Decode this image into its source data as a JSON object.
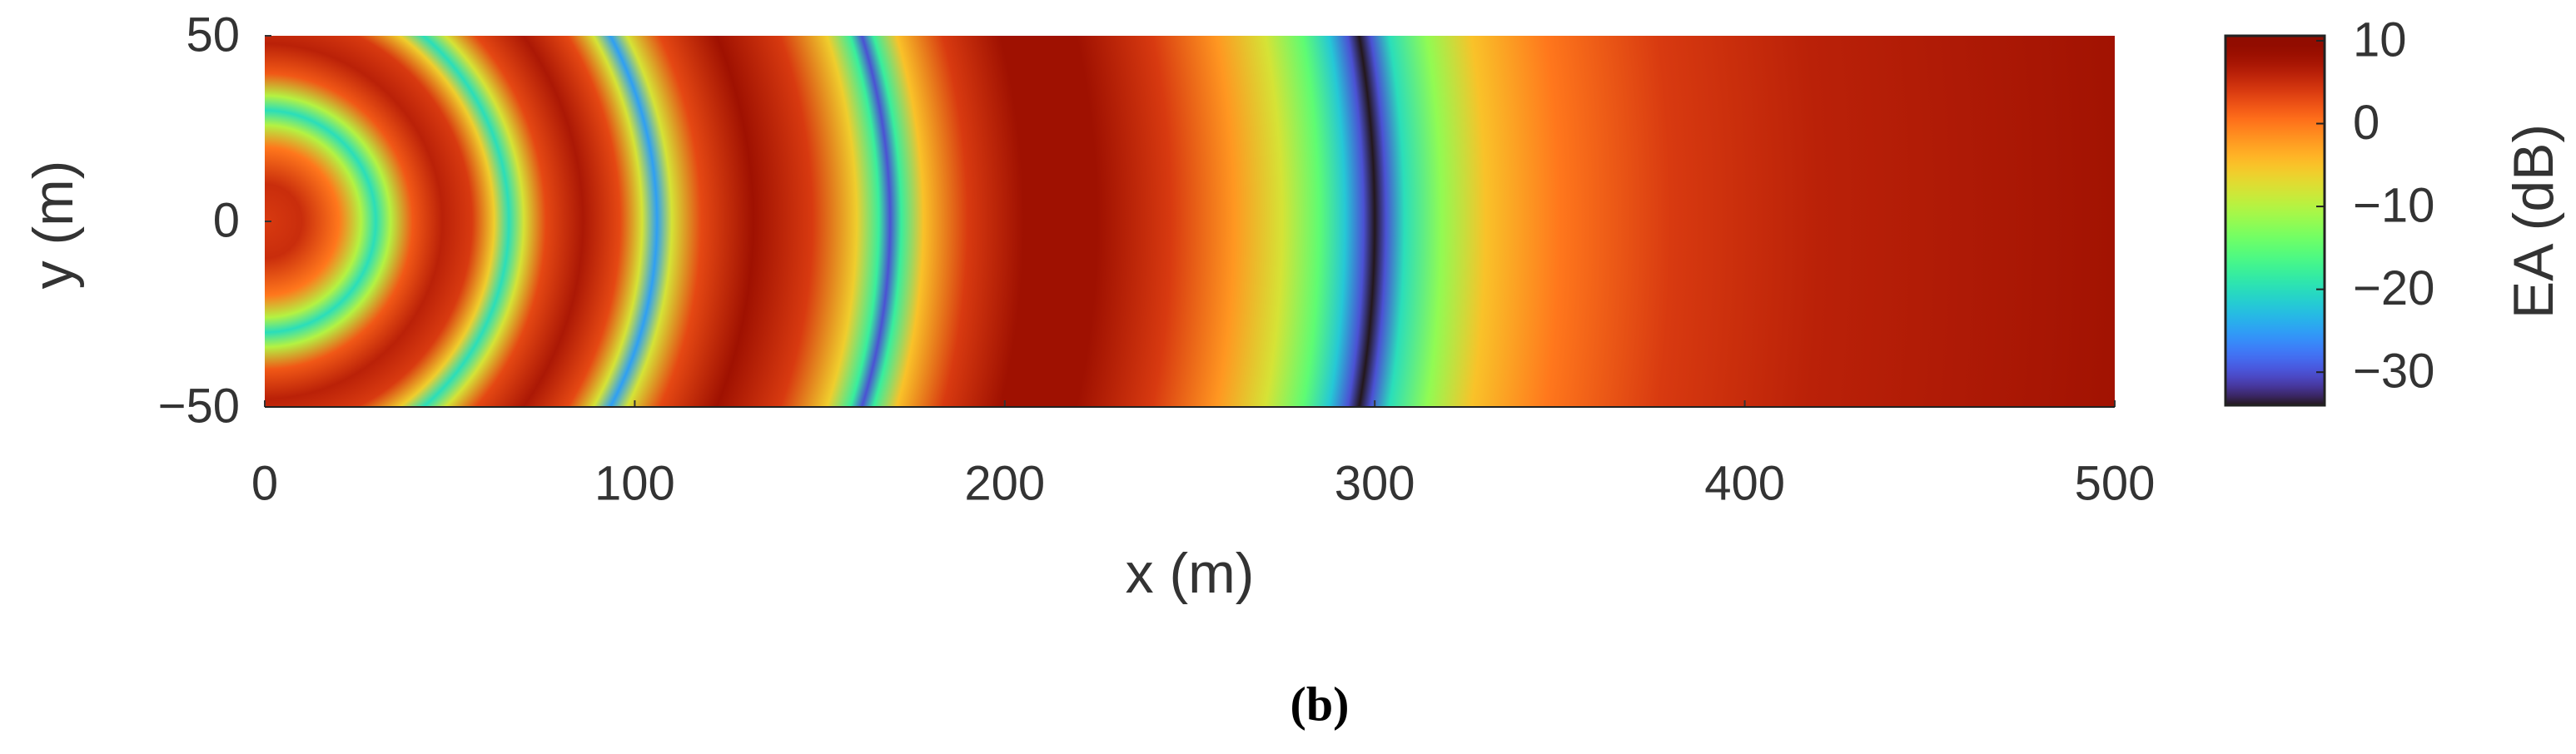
{
  "chart_data": {
    "type": "radial-heatmap",
    "caption": "(b)",
    "x_label": "x (m)",
    "y_label": "y (m)",
    "colorbar_label": "EA (dB)",
    "xlim": [
      0,
      500
    ],
    "ylim": [
      -50,
      50
    ],
    "xticks": [
      0,
      100,
      200,
      300,
      400,
      500
    ],
    "yticks": [
      {
        "value": -50,
        "label": "−50"
      },
      0,
      50
    ],
    "clim": [
      -34,
      10.6
    ],
    "cticks": [
      {
        "value": -30,
        "label": "−30"
      },
      {
        "value": -20,
        "label": "−20"
      },
      {
        "value": -10,
        "label": "−10"
      },
      0,
      10
    ],
    "colormap": "turbo",
    "radius": [
      0,
      10,
      20,
      26,
      30,
      34,
      40,
      48,
      56,
      62,
      66,
      70,
      76,
      86,
      96,
      102,
      106,
      110,
      118,
      132,
      148,
      160,
      166,
      169,
      172,
      178,
      190,
      205,
      225,
      245,
      262,
      275,
      285,
      292,
      297,
      300,
      303,
      308,
      318,
      330,
      350,
      380,
      420,
      470,
      510
    ],
    "values": [
      4,
      5,
      0,
      -10,
      -20,
      -10,
      2,
      6,
      4,
      -6,
      -20,
      -8,
      3,
      7,
      3,
      -8,
      -25,
      -8,
      3,
      8,
      4,
      -6,
      -18,
      -30,
      -18,
      -5,
      4,
      8,
      8,
      4,
      -2,
      -8,
      -15,
      -22,
      -30,
      -35,
      -30,
      -20,
      -12,
      -5,
      0,
      4,
      6,
      7,
      8
    ]
  }
}
